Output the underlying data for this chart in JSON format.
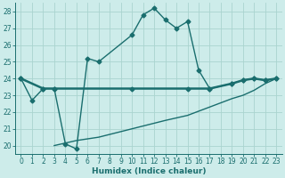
{
  "xlabel": "Humidex (Indice chaleur)",
  "bg_color": "#cdecea",
  "grid_color": "#aad4cf",
  "line_color": "#1a6e6e",
  "xlim": [
    -0.5,
    23.5
  ],
  "ylim": [
    19.5,
    28.5
  ],
  "yticks": [
    20,
    21,
    22,
    23,
    24,
    25,
    26,
    27,
    28
  ],
  "xticks": [
    0,
    1,
    2,
    3,
    4,
    5,
    6,
    7,
    8,
    9,
    10,
    11,
    12,
    13,
    14,
    15,
    16,
    17,
    18,
    19,
    20,
    21,
    22,
    23
  ],
  "line1_x": [
    0,
    1,
    2,
    3,
    4,
    5,
    6,
    7,
    10,
    11,
    12,
    13,
    14,
    15,
    16,
    17,
    19,
    20,
    21,
    22,
    23
  ],
  "line1_y": [
    24.0,
    22.7,
    23.4,
    23.4,
    20.1,
    19.8,
    25.2,
    25.0,
    26.6,
    27.8,
    28.2,
    27.5,
    27.0,
    27.4,
    24.5,
    23.4,
    23.7,
    23.9,
    24.0,
    23.9,
    24.0
  ],
  "line2_x": [
    0,
    2,
    3,
    10,
    15,
    17,
    19,
    20,
    21,
    22,
    23
  ],
  "line2_y": [
    24.0,
    23.4,
    23.4,
    23.4,
    23.4,
    23.4,
    23.7,
    23.9,
    24.0,
    23.9,
    24.0
  ],
  "line3_x": [
    3,
    5,
    7,
    10,
    13,
    15,
    17,
    19,
    20,
    21,
    22,
    23
  ],
  "line3_y": [
    20.0,
    20.3,
    20.5,
    21.0,
    21.5,
    21.8,
    22.3,
    22.8,
    23.0,
    23.3,
    23.7,
    24.0
  ],
  "marker": "D",
  "marker_size": 2.5,
  "linewidth": 1.0,
  "thick_linewidth": 1.8,
  "tick_fontsize": 5.5,
  "label_fontsize": 6.5
}
